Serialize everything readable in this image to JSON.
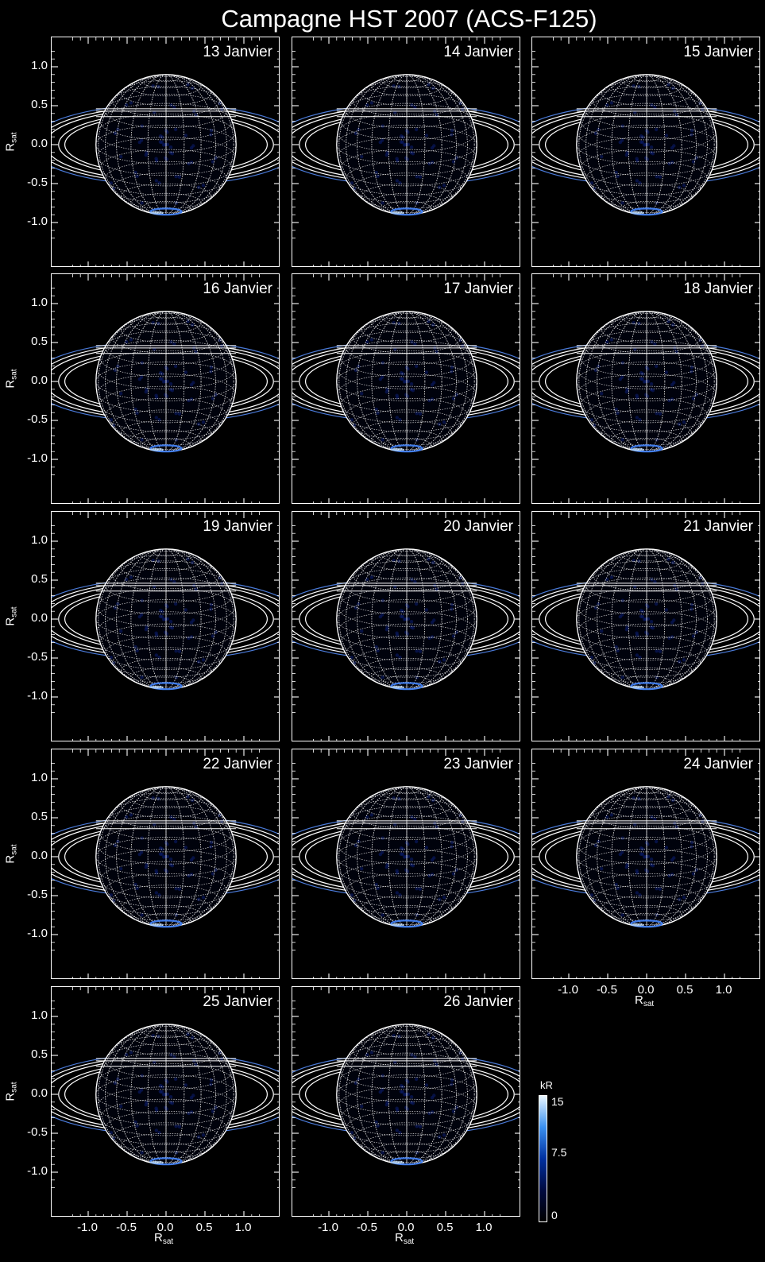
{
  "title": "Campagne HST 2007 (ACS-F125)",
  "axis_label_main": "R",
  "axis_label_sub": "sat",
  "tick_labels": [
    "-1.0",
    "-0.5",
    "0.0",
    "0.5",
    "1.0"
  ],
  "panels": [
    {
      "date": "13 Janvier"
    },
    {
      "date": "14 Janvier"
    },
    {
      "date": "15 Janvier"
    },
    {
      "date": "16 Janvier"
    },
    {
      "date": "17 Janvier"
    },
    {
      "date": "18 Janvier"
    },
    {
      "date": "19 Janvier"
    },
    {
      "date": "20 Janvier"
    },
    {
      "date": "21 Janvier"
    },
    {
      "date": "22 Janvier"
    },
    {
      "date": "23 Janvier"
    },
    {
      "date": "24 Janvier"
    },
    {
      "date": "25 Janvier"
    },
    {
      "date": "26 Janvier"
    }
  ],
  "colorbar": {
    "unit": "kR",
    "tick_labels": [
      "15",
      "7.5",
      "0"
    ],
    "colors": [
      "#000000",
      "#000a40",
      "#0030a0",
      "#3a90f0",
      "#e8f6ff"
    ]
  }
}
